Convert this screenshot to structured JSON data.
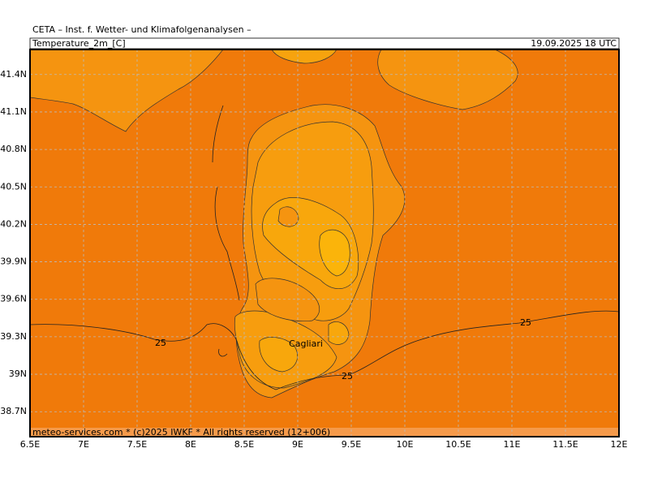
{
  "header": {
    "institute": "CETA – Inst. f. Wetter- und Klimafolgenanalysen –",
    "field": "Temperature_2m_[C]",
    "valid_time": "19.09.2025 18 UTC"
  },
  "map": {
    "lon_range": [
      6.5,
      12
    ],
    "lat_range": [
      38.5,
      41.6
    ],
    "lat_ticks": [
      {
        "value": 41.4,
        "label": "41.4N"
      },
      {
        "value": 41.1,
        "label": "41.1N"
      },
      {
        "value": 40.8,
        "label": "40.8N"
      },
      {
        "value": 40.5,
        "label": "40.5N"
      },
      {
        "value": 40.2,
        "label": "40.2N"
      },
      {
        "value": 39.9,
        "label": "39.9N"
      },
      {
        "value": 39.6,
        "label": "39.6N"
      },
      {
        "value": 39.3,
        "label": "39.3N"
      },
      {
        "value": 39,
        "label": "39N"
      },
      {
        "value": 38.7,
        "label": "38.7N"
      }
    ],
    "lon_ticks": [
      {
        "value": 6.5,
        "label": "6.5E"
      },
      {
        "value": 7,
        "label": "7E"
      },
      {
        "value": 7.5,
        "label": "7.5E"
      },
      {
        "value": 8,
        "label": "8E"
      },
      {
        "value": 8.5,
        "label": "8.5E"
      },
      {
        "value": 9,
        "label": "9E"
      },
      {
        "value": 9.5,
        "label": "9.5E"
      },
      {
        "value": 10,
        "label": "10E"
      },
      {
        "value": 10.5,
        "label": "10.5E"
      },
      {
        "value": 11,
        "label": "11E"
      },
      {
        "value": 11.5,
        "label": "11.5E"
      },
      {
        "value": 12,
        "label": "12E"
      }
    ],
    "contour_labels": [
      "25",
      "25",
      "25"
    ],
    "city": "Cagliari"
  },
  "footer": "meteo-services.com * (c)2025 IWKF * All rights reserved (12+006)"
}
